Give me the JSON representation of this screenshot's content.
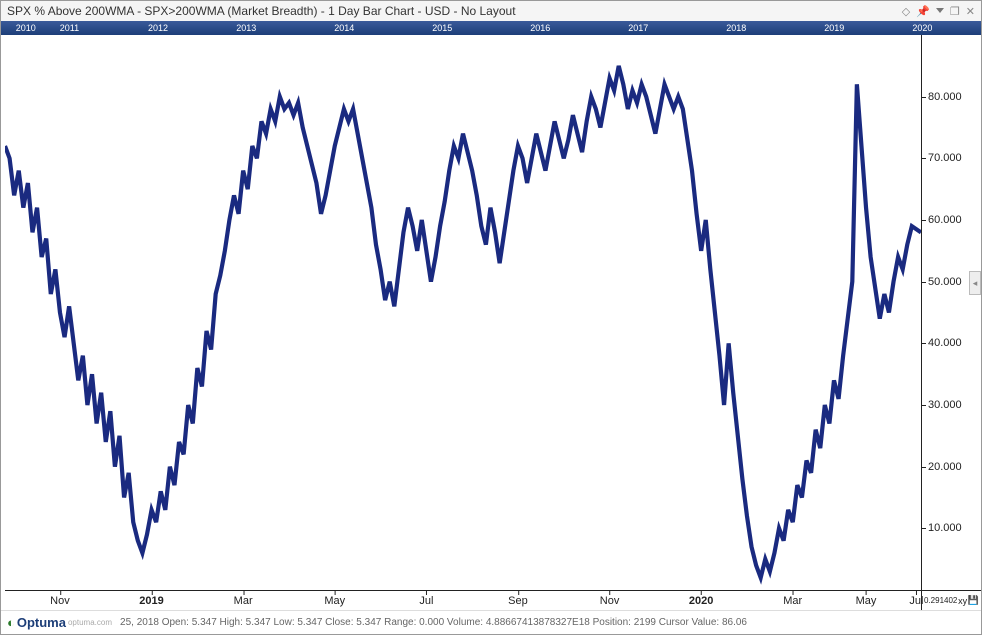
{
  "title": "SPX % Above 200WMA - SPX>200WMA (Market Breadth) - 1 Day Bar Chart - USD - No Layout",
  "window_icons": {
    "diamond": "◇",
    "pin": "📌",
    "chevdown": "",
    "restore": "❐",
    "close": "✕"
  },
  "year_strip": {
    "background_from": "#3a5a9a",
    "background_to": "#1d3e78",
    "labels": [
      {
        "text": "2010",
        "left_pct": 1.5
      },
      {
        "text": "2011",
        "left_pct": 6
      },
      {
        "text": "2012",
        "left_pct": 15
      },
      {
        "text": "2013",
        "left_pct": 24
      },
      {
        "text": "2014",
        "left_pct": 34
      },
      {
        "text": "2015",
        "left_pct": 44
      },
      {
        "text": "2016",
        "left_pct": 54
      },
      {
        "text": "2017",
        "left_pct": 64
      },
      {
        "text": "2018",
        "left_pct": 74
      },
      {
        "text": "2019",
        "left_pct": 84
      },
      {
        "text": "2020",
        "left_pct": 93
      }
    ]
  },
  "chart": {
    "type": "line",
    "line_color": "#1a2a80",
    "line_width": 1.4,
    "background_color": "#ffffff",
    "ylim": [
      0,
      90
    ],
    "yticks": [
      10,
      20,
      30,
      40,
      50,
      60,
      70,
      80
    ],
    "ytick_suffix": ".000",
    "xlim": [
      0,
      100
    ],
    "xticks": [
      {
        "label": "Nov",
        "pos": 6
      },
      {
        "label": "2019",
        "pos": 16
      },
      {
        "label": "Mar",
        "pos": 26
      },
      {
        "label": "May",
        "pos": 36
      },
      {
        "label": "Jul",
        "pos": 46
      },
      {
        "label": "Sep",
        "pos": 56
      },
      {
        "label": "Nov",
        "pos": 66
      },
      {
        "label": "2020",
        "pos": 76
      },
      {
        "label": "Mar",
        "pos": 86
      },
      {
        "label": "May",
        "pos": 94
      },
      {
        "label": "Jul",
        "pos": 99.5
      }
    ],
    "series": [
      [
        0,
        72
      ],
      [
        0.5,
        70
      ],
      [
        1,
        64
      ],
      [
        1.5,
        68
      ],
      [
        2,
        62
      ],
      [
        2.5,
        66
      ],
      [
        3,
        58
      ],
      [
        3.5,
        62
      ],
      [
        4,
        54
      ],
      [
        4.5,
        57
      ],
      [
        5,
        48
      ],
      [
        5.5,
        52
      ],
      [
        6,
        45
      ],
      [
        6.5,
        41
      ],
      [
        7,
        46
      ],
      [
        7.5,
        40
      ],
      [
        8,
        34
      ],
      [
        8.5,
        38
      ],
      [
        9,
        30
      ],
      [
        9.5,
        35
      ],
      [
        10,
        27
      ],
      [
        10.5,
        32
      ],
      [
        11,
        24
      ],
      [
        11.5,
        29
      ],
      [
        12,
        20
      ],
      [
        12.5,
        25
      ],
      [
        13,
        15
      ],
      [
        13.5,
        19
      ],
      [
        14,
        11
      ],
      [
        14.5,
        8
      ],
      [
        15,
        6
      ],
      [
        15.5,
        9
      ],
      [
        16,
        13
      ],
      [
        16.5,
        11
      ],
      [
        17,
        16
      ],
      [
        17.5,
        13
      ],
      [
        18,
        20
      ],
      [
        18.5,
        17
      ],
      [
        19,
        24
      ],
      [
        19.5,
        22
      ],
      [
        20,
        30
      ],
      [
        20.5,
        27
      ],
      [
        21,
        36
      ],
      [
        21.5,
        33
      ],
      [
        22,
        42
      ],
      [
        22.5,
        39
      ],
      [
        23,
        48
      ],
      [
        23.5,
        51
      ],
      [
        24,
        55
      ],
      [
        24.5,
        60
      ],
      [
        25,
        64
      ],
      [
        25.5,
        61
      ],
      [
        26,
        68
      ],
      [
        26.5,
        65
      ],
      [
        27,
        72
      ],
      [
        27.5,
        70
      ],
      [
        28,
        76
      ],
      [
        28.5,
        74
      ],
      [
        29,
        78
      ],
      [
        29.5,
        76
      ],
      [
        30,
        80
      ],
      [
        30.5,
        78
      ],
      [
        31,
        79
      ],
      [
        31.5,
        77
      ],
      [
        32,
        79
      ],
      [
        32.5,
        75
      ],
      [
        33,
        72
      ],
      [
        33.5,
        69
      ],
      [
        34,
        66
      ],
      [
        34.5,
        61
      ],
      [
        35,
        64
      ],
      [
        35.5,
        68
      ],
      [
        36,
        72
      ],
      [
        36.5,
        75
      ],
      [
        37,
        78
      ],
      [
        37.5,
        76
      ],
      [
        38,
        78
      ],
      [
        38.5,
        74
      ],
      [
        39,
        70
      ],
      [
        39.5,
        66
      ],
      [
        40,
        62
      ],
      [
        40.5,
        56
      ],
      [
        41,
        52
      ],
      [
        41.5,
        47
      ],
      [
        42,
        50
      ],
      [
        42.5,
        46
      ],
      [
        43,
        52
      ],
      [
        43.5,
        58
      ],
      [
        44,
        62
      ],
      [
        44.5,
        59
      ],
      [
        45,
        55
      ],
      [
        45.5,
        60
      ],
      [
        46,
        55
      ],
      [
        46.5,
        50
      ],
      [
        47,
        54
      ],
      [
        47.5,
        59
      ],
      [
        48,
        63
      ],
      [
        48.5,
        68
      ],
      [
        49,
        72
      ],
      [
        49.5,
        70
      ],
      [
        50,
        74
      ],
      [
        50.5,
        71
      ],
      [
        51,
        68
      ],
      [
        51.5,
        64
      ],
      [
        52,
        59
      ],
      [
        52.5,
        56
      ],
      [
        53,
        62
      ],
      [
        53.5,
        58
      ],
      [
        54,
        53
      ],
      [
        54.5,
        58
      ],
      [
        55,
        63
      ],
      [
        55.5,
        68
      ],
      [
        56,
        72
      ],
      [
        56.5,
        70
      ],
      [
        57,
        66
      ],
      [
        57.5,
        70
      ],
      [
        58,
        74
      ],
      [
        58.5,
        71
      ],
      [
        59,
        68
      ],
      [
        59.5,
        72
      ],
      [
        60,
        76
      ],
      [
        60.5,
        73
      ],
      [
        61,
        70
      ],
      [
        61.5,
        73
      ],
      [
        62,
        77
      ],
      [
        62.5,
        74
      ],
      [
        63,
        71
      ],
      [
        63.5,
        76
      ],
      [
        64,
        80
      ],
      [
        64.5,
        78
      ],
      [
        65,
        75
      ],
      [
        65.5,
        79
      ],
      [
        66,
        83
      ],
      [
        66.5,
        81
      ],
      [
        67,
        85
      ],
      [
        67.5,
        82
      ],
      [
        68,
        78
      ],
      [
        68.5,
        81
      ],
      [
        69,
        79
      ],
      [
        69.5,
        82
      ],
      [
        70,
        80
      ],
      [
        70.5,
        77
      ],
      [
        71,
        74
      ],
      [
        71.5,
        78
      ],
      [
        72,
        82
      ],
      [
        72.5,
        80
      ],
      [
        73,
        78
      ],
      [
        73.5,
        80
      ],
      [
        74,
        78
      ],
      [
        74.5,
        73
      ],
      [
        75,
        68
      ],
      [
        75.5,
        61
      ],
      [
        76,
        55
      ],
      [
        76.5,
        60
      ],
      [
        77,
        52
      ],
      [
        77.5,
        45
      ],
      [
        78,
        38
      ],
      [
        78.5,
        30
      ],
      [
        79,
        40
      ],
      [
        79.5,
        32
      ],
      [
        80,
        25
      ],
      [
        80.5,
        18
      ],
      [
        81,
        12
      ],
      [
        81.5,
        7
      ],
      [
        82,
        4
      ],
      [
        82.5,
        2
      ],
      [
        83,
        5
      ],
      [
        83.5,
        3
      ],
      [
        84,
        6
      ],
      [
        84.5,
        10
      ],
      [
        85,
        8
      ],
      [
        85.5,
        13
      ],
      [
        86,
        11
      ],
      [
        86.5,
        17
      ],
      [
        87,
        15
      ],
      [
        87.5,
        21
      ],
      [
        88,
        19
      ],
      [
        88.5,
        26
      ],
      [
        89,
        23
      ],
      [
        89.5,
        30
      ],
      [
        90,
        27
      ],
      [
        90.5,
        34
      ],
      [
        91,
        31
      ],
      [
        91.5,
        38
      ],
      [
        92,
        44
      ],
      [
        92.5,
        50
      ],
      [
        93,
        82
      ],
      [
        93.5,
        72
      ],
      [
        94,
        62
      ],
      [
        94.5,
        54
      ],
      [
        95,
        49
      ],
      [
        95.5,
        44
      ],
      [
        96,
        48
      ],
      [
        96.5,
        45
      ],
      [
        97,
        50
      ],
      [
        97.5,
        54
      ],
      [
        98,
        52
      ],
      [
        98.5,
        56
      ],
      [
        99,
        59
      ],
      [
        100,
        58
      ]
    ]
  },
  "corner_box": {
    "value": "0.291402",
    "label_xy": "xy"
  },
  "status_line": "25, 2018 Open: 5.347 High: 5.347 Low: 5.347 Close: 5.347 Range: 0.000 Volume: 4.88667413878327E18 Position: 2199 Cursor Value: 86.06",
  "footer_brand": {
    "name": "Optuma",
    "site": "optuma.com"
  }
}
